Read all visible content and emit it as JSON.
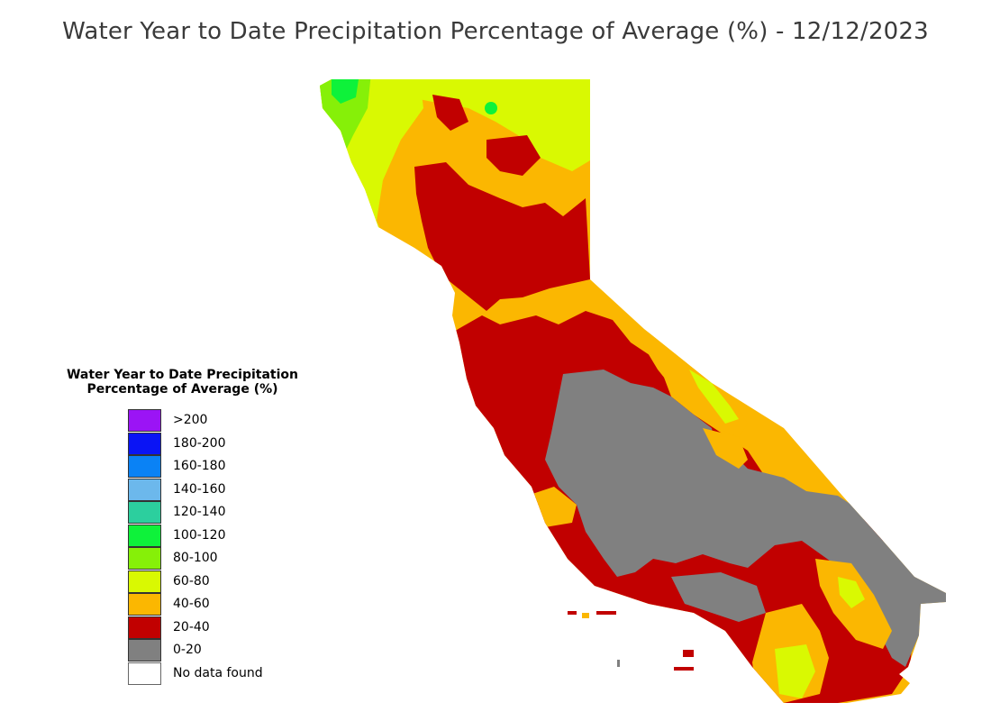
{
  "title": "Water Year to Date Precipitation Percentage of Average (%) - 12/12/2023",
  "legend": {
    "title_line1": "Water Year to Date Precipitation",
    "title_line2": "Percentage of Average (%)",
    "items": [
      {
        "label": ">200",
        "color": "#9b14f5"
      },
      {
        "label": "180-200",
        "color": "#0a14f5"
      },
      {
        "label": "160-180",
        "color": "#0a82f5"
      },
      {
        "label": "140-160",
        "color": "#6cb8ec"
      },
      {
        "label": "120-140",
        "color": "#2ccf9e"
      },
      {
        "label": "100-120",
        "color": "#0ef23a"
      },
      {
        "label": "80-100",
        "color": "#86f008"
      },
      {
        "label": "60-80",
        "color": "#d9f902"
      },
      {
        "label": "40-60",
        "color": "#fbb701"
      },
      {
        "label": "20-40",
        "color": "#c10000"
      },
      {
        "label": "0-20",
        "color": "#808080"
      },
      {
        "label": "No data found",
        "color": "#ffffff"
      }
    ]
  }
}
